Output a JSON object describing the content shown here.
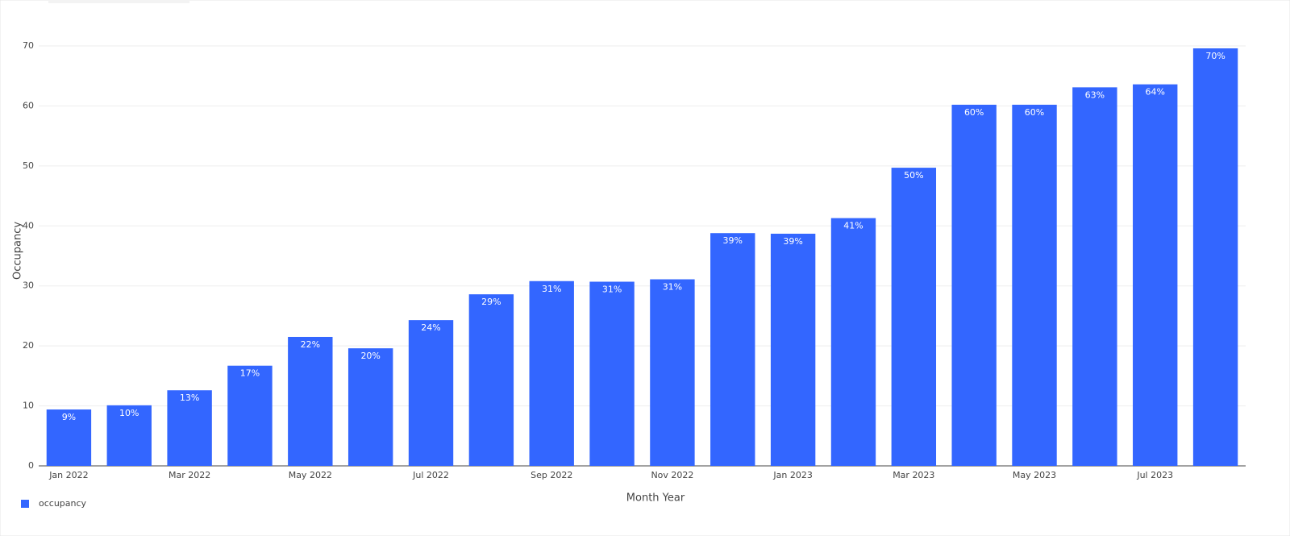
{
  "chart_data": {
    "type": "bar",
    "x_label": "Month Year",
    "y_label": "Occupancy",
    "categories": [
      "Jan 2022",
      null,
      "Mar 2022",
      null,
      "May 2022",
      null,
      "Jul 2022",
      null,
      "Sep 2022",
      null,
      "Nov 2022",
      null,
      "Jan 2023",
      null,
      "Mar 2023",
      null,
      "May 2023",
      null,
      "Jul 2023",
      null
    ],
    "series": [
      {
        "name": "occupancy",
        "color": "#3366ff",
        "values": [
          9.4,
          10.1,
          12.6,
          16.7,
          21.5,
          19.6,
          24.3,
          28.6,
          30.8,
          30.7,
          31.1,
          38.8,
          38.7,
          41.3,
          49.7,
          60.2,
          60.2,
          63.1,
          63.6,
          69.6
        ],
        "value_labels": [
          "9%",
          "10%",
          "13%",
          "17%",
          "22%",
          "20%",
          "24%",
          "29%",
          "31%",
          "31%",
          "31%",
          "39%",
          "39%",
          "41%",
          "50%",
          "60%",
          "60%",
          "63%",
          "64%",
          "70%"
        ]
      }
    ],
    "ylim": [
      0,
      70
    ],
    "yticks": [
      0,
      10,
      20,
      30,
      40,
      50,
      60,
      70
    ],
    "grid": true,
    "legend": "bottom-left"
  }
}
